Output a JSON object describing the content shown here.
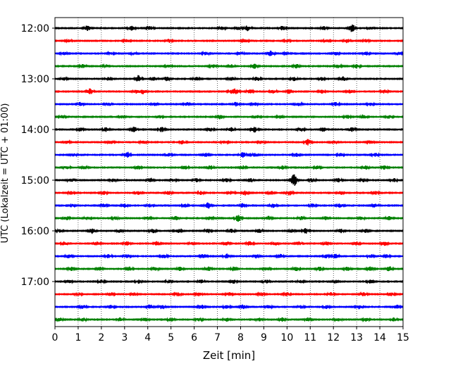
{
  "chart_data": {
    "type": "line",
    "title": "",
    "xlabel": "Zeit  [min]",
    "ylabel": "UTC (Lokalzeit = UTC + 01:00)",
    "xlim": [
      0,
      15
    ],
    "xticks": [
      0,
      1,
      2,
      3,
      4,
      5,
      6,
      7,
      8,
      9,
      10,
      11,
      12,
      13,
      14,
      15
    ],
    "xtick_labels": [
      "0",
      "1",
      "2",
      "3",
      "4",
      "5",
      "6",
      "7",
      "8",
      "9",
      "10",
      "11",
      "12",
      "13",
      "14",
      "15"
    ],
    "ytick_labels": [
      {
        "row": 0,
        "label": "12:00"
      },
      {
        "row": 4,
        "label": "13:00"
      },
      {
        "row": 8,
        "label": "14:00"
      },
      {
        "row": 12,
        "label": "15:00"
      },
      {
        "row": 16,
        "label": "16:00"
      },
      {
        "row": 20,
        "label": "17:00"
      }
    ],
    "grid": {
      "x": true,
      "y": false,
      "style": "dotted"
    },
    "series_colors": [
      "#000000",
      "#ff0000",
      "#0000ff",
      "#008000"
    ],
    "traces": [
      {
        "start": "12:00",
        "color": "#000000",
        "events": [
          [
            1.4,
            0.9
          ],
          [
            3.3,
            0.9
          ],
          [
            4.1,
            0.6
          ],
          [
            7.2,
            0.5
          ],
          [
            7.9,
            0.6
          ],
          [
            8.3,
            1.0
          ],
          [
            9.8,
            0.7
          ],
          [
            11.6,
            0.6
          ],
          [
            12.8,
            1.4
          ],
          [
            13.6,
            0.5
          ]
        ]
      },
      {
        "start": "12:15",
        "color": "#ff0000",
        "events": [
          [
            0.6,
            0.4
          ],
          [
            3.1,
            0.5
          ],
          [
            4.9,
            0.6
          ],
          [
            8.2,
            0.5
          ],
          [
            10.0,
            0.5
          ],
          [
            11.7,
            0.4
          ],
          [
            12.6,
            0.7
          ],
          [
            13.4,
            0.5
          ]
        ]
      },
      {
        "start": "12:30",
        "color": "#0000ff",
        "events": [
          [
            0.4,
            0.5
          ],
          [
            2.4,
            0.4
          ],
          [
            3.4,
            0.5
          ],
          [
            6.5,
            0.5
          ],
          [
            8.0,
            0.5
          ],
          [
            9.3,
            0.9
          ],
          [
            10.0,
            0.5
          ],
          [
            12.1,
            0.6
          ],
          [
            13.4,
            0.6
          ],
          [
            14.8,
            0.5
          ]
        ]
      },
      {
        "start": "12:45",
        "color": "#008000",
        "events": [
          [
            1.2,
            0.6
          ],
          [
            2.2,
            0.5
          ],
          [
            4.9,
            0.6
          ],
          [
            6.8,
            0.6
          ],
          [
            7.6,
            0.6
          ],
          [
            8.6,
            0.8
          ],
          [
            10.4,
            0.7
          ],
          [
            12.2,
            0.7
          ],
          [
            13.0,
            0.6
          ]
        ]
      },
      {
        "start": "13:00",
        "color": "#000000",
        "events": [
          [
            0.4,
            0.5
          ],
          [
            2.3,
            0.5
          ],
          [
            3.6,
            1.2
          ],
          [
            4.3,
            0.7
          ],
          [
            4.8,
            0.7
          ],
          [
            6.1,
            0.6
          ],
          [
            7.6,
            0.6
          ],
          [
            8.7,
            0.8
          ],
          [
            10.3,
            0.7
          ],
          [
            11.5,
            0.6
          ],
          [
            12.4,
            0.8
          ]
        ]
      },
      {
        "start": "13:15",
        "color": "#ff0000",
        "events": [
          [
            1.5,
            1.0
          ],
          [
            3.5,
            0.6
          ],
          [
            3.8,
            0.8
          ],
          [
            7.6,
            0.6
          ],
          [
            7.8,
            0.9
          ],
          [
            8.4,
            0.7
          ],
          [
            9.4,
            0.6
          ],
          [
            10.1,
            0.8
          ],
          [
            11.5,
            0.6
          ],
          [
            12.7,
            0.6
          ],
          [
            14.2,
            0.6
          ]
        ]
      },
      {
        "start": "13:30",
        "color": "#0000ff",
        "events": [
          [
            1.1,
            0.7
          ],
          [
            2.3,
            0.6
          ],
          [
            4.3,
            0.6
          ],
          [
            5.7,
            0.6
          ],
          [
            7.8,
            0.7
          ],
          [
            8.6,
            0.6
          ],
          [
            10.5,
            0.6
          ],
          [
            12.1,
            0.6
          ],
          [
            13.6,
            0.5
          ]
        ]
      },
      {
        "start": "13:45",
        "color": "#008000",
        "events": [
          [
            0.3,
            0.5
          ],
          [
            2.9,
            0.5
          ],
          [
            4.5,
            0.6
          ],
          [
            7.1,
            0.8
          ],
          [
            8.7,
            0.6
          ],
          [
            9.7,
            0.6
          ],
          [
            12.6,
            0.6
          ],
          [
            13.3,
            0.8
          ],
          [
            14.4,
            0.6
          ]
        ]
      },
      {
        "start": "14:00",
        "color": "#000000",
        "events": [
          [
            1.1,
            0.6
          ],
          [
            2.2,
            0.7
          ],
          [
            3.4,
            1.0
          ],
          [
            4.6,
            0.8
          ],
          [
            6.7,
            0.6
          ],
          [
            7.6,
            0.7
          ],
          [
            8.6,
            0.9
          ],
          [
            10.6,
            0.7
          ],
          [
            11.6,
            0.8
          ],
          [
            12.8,
            0.7
          ]
        ]
      },
      {
        "start": "14:15",
        "color": "#ff0000",
        "events": [
          [
            0.5,
            0.5
          ],
          [
            2.4,
            0.6
          ],
          [
            3.8,
            0.6
          ],
          [
            5.5,
            0.7
          ],
          [
            7.3,
            0.6
          ],
          [
            8.9,
            0.6
          ],
          [
            10.9,
            1.0
          ],
          [
            12.0,
            0.5
          ],
          [
            13.6,
            0.6
          ]
        ]
      },
      {
        "start": "14:30",
        "color": "#0000ff",
        "events": [
          [
            0.8,
            0.5
          ],
          [
            3.1,
            1.1
          ],
          [
            4.9,
            0.6
          ],
          [
            6.5,
            0.6
          ],
          [
            8.1,
            0.9
          ],
          [
            8.6,
            0.6
          ],
          [
            10.4,
            0.7
          ],
          [
            12.3,
            0.5
          ],
          [
            13.8,
            0.6
          ]
        ]
      },
      {
        "start": "14:45",
        "color": "#008000",
        "events": [
          [
            0.5,
            0.5
          ],
          [
            1.3,
            0.6
          ],
          [
            3.6,
            0.6
          ],
          [
            5.6,
            0.6
          ],
          [
            6.7,
            0.7
          ],
          [
            8.1,
            0.6
          ],
          [
            9.8,
            0.6
          ],
          [
            11.3,
            0.6
          ],
          [
            13.4,
            0.6
          ],
          [
            14.2,
            0.6
          ]
        ]
      },
      {
        "start": "15:00",
        "color": "#000000",
        "events": [
          [
            0.7,
            0.7
          ],
          [
            2.5,
            0.6
          ],
          [
            4.1,
            0.8
          ],
          [
            5.1,
            0.5
          ],
          [
            6.1,
            0.7
          ],
          [
            7.4,
            0.6
          ],
          [
            8.4,
            0.7
          ],
          [
            10.3,
            2.2
          ],
          [
            11.1,
            0.6
          ],
          [
            12.2,
            0.7
          ],
          [
            13.3,
            0.6
          ],
          [
            14.6,
            0.6
          ]
        ]
      },
      {
        "start": "15:15",
        "color": "#ff0000",
        "events": [
          [
            0.7,
            0.5
          ],
          [
            2.1,
            0.6
          ],
          [
            3.6,
            0.6
          ],
          [
            4.9,
            0.6
          ],
          [
            6.3,
            0.6
          ],
          [
            7.6,
            0.6
          ],
          [
            8.2,
            0.8
          ],
          [
            9.3,
            0.6
          ],
          [
            10.1,
            0.8
          ],
          [
            12.3,
            0.7
          ],
          [
            13.8,
            0.6
          ]
        ]
      },
      {
        "start": "15:30",
        "color": "#0000ff",
        "events": [
          [
            0.7,
            0.5
          ],
          [
            2.1,
            0.6
          ],
          [
            3.0,
            0.6
          ],
          [
            4.1,
            0.6
          ],
          [
            5.6,
            0.6
          ],
          [
            6.6,
            1.0
          ],
          [
            8.1,
            0.7
          ],
          [
            9.4,
            0.7
          ],
          [
            11.1,
            0.6
          ],
          [
            12.3,
            0.7
          ],
          [
            13.8,
            0.6
          ]
        ]
      },
      {
        "start": "15:45",
        "color": "#008000",
        "events": [
          [
            0.5,
            0.6
          ],
          [
            1.4,
            0.6
          ],
          [
            2.6,
            0.6
          ],
          [
            4.0,
            0.6
          ],
          [
            5.2,
            0.7
          ],
          [
            6.7,
            0.7
          ],
          [
            7.9,
            1.1
          ],
          [
            9.2,
            0.7
          ],
          [
            10.6,
            0.6
          ],
          [
            11.7,
            0.7
          ],
          [
            13.2,
            0.6
          ],
          [
            14.4,
            0.6
          ]
        ]
      },
      {
        "start": "16:00",
        "color": "#000000",
        "events": [
          [
            0.2,
            0.5
          ],
          [
            1.6,
            0.9
          ],
          [
            2.8,
            0.6
          ],
          [
            4.2,
            0.8
          ],
          [
            5.3,
            0.7
          ],
          [
            6.6,
            0.7
          ],
          [
            7.6,
            0.8
          ],
          [
            8.8,
            0.7
          ],
          [
            10.2,
            0.6
          ],
          [
            10.8,
            0.9
          ],
          [
            12.3,
            0.7
          ],
          [
            13.4,
            0.6
          ]
        ]
      },
      {
        "start": "16:15",
        "color": "#ff0000",
        "events": [
          [
            0.4,
            0.6
          ],
          [
            1.8,
            0.6
          ],
          [
            3.1,
            0.7
          ],
          [
            4.4,
            0.7
          ],
          [
            5.9,
            0.6
          ],
          [
            7.4,
            0.7
          ],
          [
            8.4,
            0.8
          ],
          [
            9.5,
            0.6
          ],
          [
            10.5,
            0.7
          ],
          [
            11.7,
            0.7
          ],
          [
            13.0,
            0.6
          ],
          [
            14.2,
            0.7
          ]
        ]
      },
      {
        "start": "16:30",
        "color": "#0000ff",
        "events": [
          [
            0.6,
            0.7
          ],
          [
            2.3,
            0.6
          ],
          [
            3.1,
            0.6
          ],
          [
            4.7,
            0.7
          ],
          [
            6.4,
            0.7
          ],
          [
            7.4,
            0.8
          ],
          [
            8.7,
            0.7
          ],
          [
            9.7,
            0.7
          ],
          [
            11.7,
            0.6
          ],
          [
            12.1,
            0.8
          ],
          [
            13.6,
            0.7
          ],
          [
            14.3,
            0.6
          ]
        ]
      },
      {
        "start": "16:45",
        "color": "#008000",
        "events": [
          [
            0.7,
            0.6
          ],
          [
            1.9,
            0.7
          ],
          [
            3.2,
            0.7
          ],
          [
            4.3,
            0.7
          ],
          [
            5.4,
            0.7
          ],
          [
            6.6,
            0.8
          ],
          [
            7.7,
            0.7
          ],
          [
            9.1,
            0.7
          ],
          [
            10.4,
            0.7
          ],
          [
            11.4,
            0.7
          ],
          [
            12.6,
            0.7
          ],
          [
            13.6,
            0.7
          ],
          [
            14.4,
            0.9
          ]
        ]
      },
      {
        "start": "17:00",
        "color": "#000000",
        "events": [
          [
            0.6,
            0.5
          ],
          [
            2.0,
            0.6
          ],
          [
            3.6,
            0.6
          ],
          [
            4.9,
            0.6
          ],
          [
            6.3,
            0.6
          ],
          [
            7.7,
            0.6
          ],
          [
            9.1,
            0.6
          ],
          [
            10.6,
            0.5
          ],
          [
            12.1,
            0.6
          ],
          [
            13.6,
            0.6
          ]
        ]
      },
      {
        "start": "17:15",
        "color": "#ff0000",
        "events": [
          [
            1.0,
            0.5
          ],
          [
            2.4,
            0.6
          ],
          [
            3.4,
            0.5
          ],
          [
            5.3,
            0.6
          ],
          [
            6.2,
            0.6
          ],
          [
            7.5,
            0.6
          ],
          [
            8.9,
            0.6
          ],
          [
            10.0,
            0.6
          ],
          [
            11.9,
            0.6
          ],
          [
            13.3,
            0.6
          ],
          [
            14.5,
            0.6
          ]
        ]
      },
      {
        "start": "17:30",
        "color": "#0000ff",
        "events": [
          [
            1.2,
            0.7
          ],
          [
            2.4,
            0.6
          ],
          [
            4.1,
            0.8
          ],
          [
            4.6,
            0.7
          ],
          [
            6.3,
            0.8
          ],
          [
            7.4,
            0.6
          ],
          [
            8.1,
            0.7
          ],
          [
            9.2,
            0.7
          ],
          [
            10.6,
            0.6
          ],
          [
            11.7,
            0.6
          ],
          [
            13.1,
            0.7
          ],
          [
            14.7,
            0.8
          ]
        ]
      },
      {
        "start": "17:45",
        "color": "#008000",
        "events": [
          [
            0.2,
            0.6
          ],
          [
            1.2,
            0.6
          ],
          [
            2.8,
            0.6
          ],
          [
            3.9,
            0.7
          ],
          [
            5.0,
            0.6
          ],
          [
            6.2,
            0.6
          ],
          [
            7.4,
            0.6
          ],
          [
            8.8,
            0.6
          ],
          [
            9.8,
            0.6
          ],
          [
            10.9,
            0.6
          ],
          [
            12.2,
            0.6
          ],
          [
            13.4,
            0.6
          ],
          [
            14.6,
            0.6
          ]
        ]
      }
    ]
  }
}
